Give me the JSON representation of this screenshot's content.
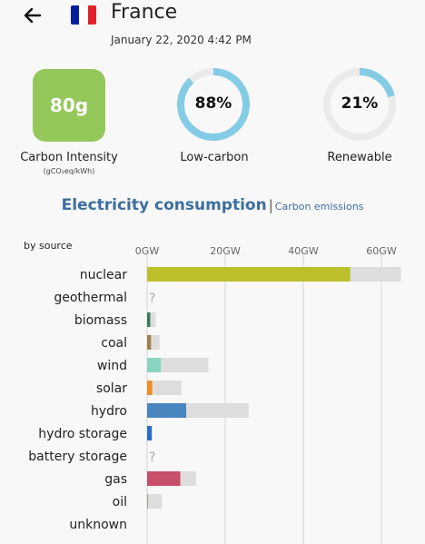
{
  "header": {
    "country": "France",
    "timestamp": "January 22, 2020 4:42 PM"
  },
  "icons": {
    "back": "arrow-left-icon",
    "flag": "france-flag-icon"
  },
  "flag_colors": [
    "#00209f",
    "#ffffff",
    "#e0202a"
  ],
  "carbon_intensity": {
    "value": "80g",
    "label": "Carbon Intensity",
    "unit": "(gCO₂eq/kWh)",
    "color": "#94c85a"
  },
  "low_carbon": {
    "value": "88%",
    "percent": 88,
    "label": "Low-carbon"
  },
  "renewable": {
    "value": "21%",
    "percent": 21,
    "label": "Renewable"
  },
  "gauge_colors": {
    "fill": "#84cce6",
    "track": "#ebebeb"
  },
  "tabs": {
    "electricity": "Electricity consumption",
    "separator": "|",
    "carbon": "Carbon emissions"
  },
  "chart_data": {
    "type": "bar",
    "ylabel": "by source",
    "xticks": [
      "0GW",
      "20GW",
      "40GW",
      "60GW"
    ],
    "xlim": [
      0,
      65
    ],
    "categories": [
      "nuclear",
      "geothermal",
      "biomass",
      "coal",
      "wind",
      "solar",
      "hydro",
      "hydro storage",
      "battery storage",
      "gas",
      "oil",
      "unknown"
    ],
    "series": [
      {
        "values": [
          52,
          null,
          0.8,
          1,
          3.5,
          1.3,
          10,
          1.2,
          null,
          8.5,
          0.2,
          0
        ]
      },
      {
        "values": [
          65,
          null,
          2.2,
          3.2,
          15.7,
          8.8,
          26,
          1.2,
          null,
          12.5,
          3.8,
          0
        ]
      }
    ],
    "colors": [
      "#bdbf2a",
      null,
      "#3a7a5a",
      "#a0804a",
      "#88d4c0",
      "#f08a24",
      "#4a86c0",
      "#2d6cd0",
      null,
      "#c8506a",
      "#9a8c7c",
      null
    ],
    "capacity_color": "#dddddd",
    "missing_label": "?"
  }
}
